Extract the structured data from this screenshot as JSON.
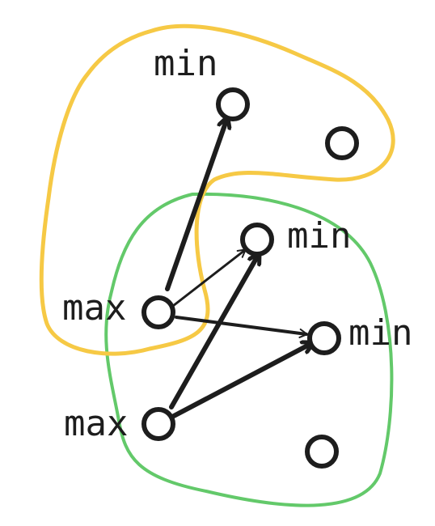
{
  "colors": {
    "yellow_region": "#f6c945",
    "green_region": "#63c96a",
    "stroke": "#1d1d1d"
  },
  "nodes": {
    "min_top": "min",
    "min_mid": "min",
    "min_right": "min",
    "max_upper": "max",
    "max_lower": "max"
  }
}
